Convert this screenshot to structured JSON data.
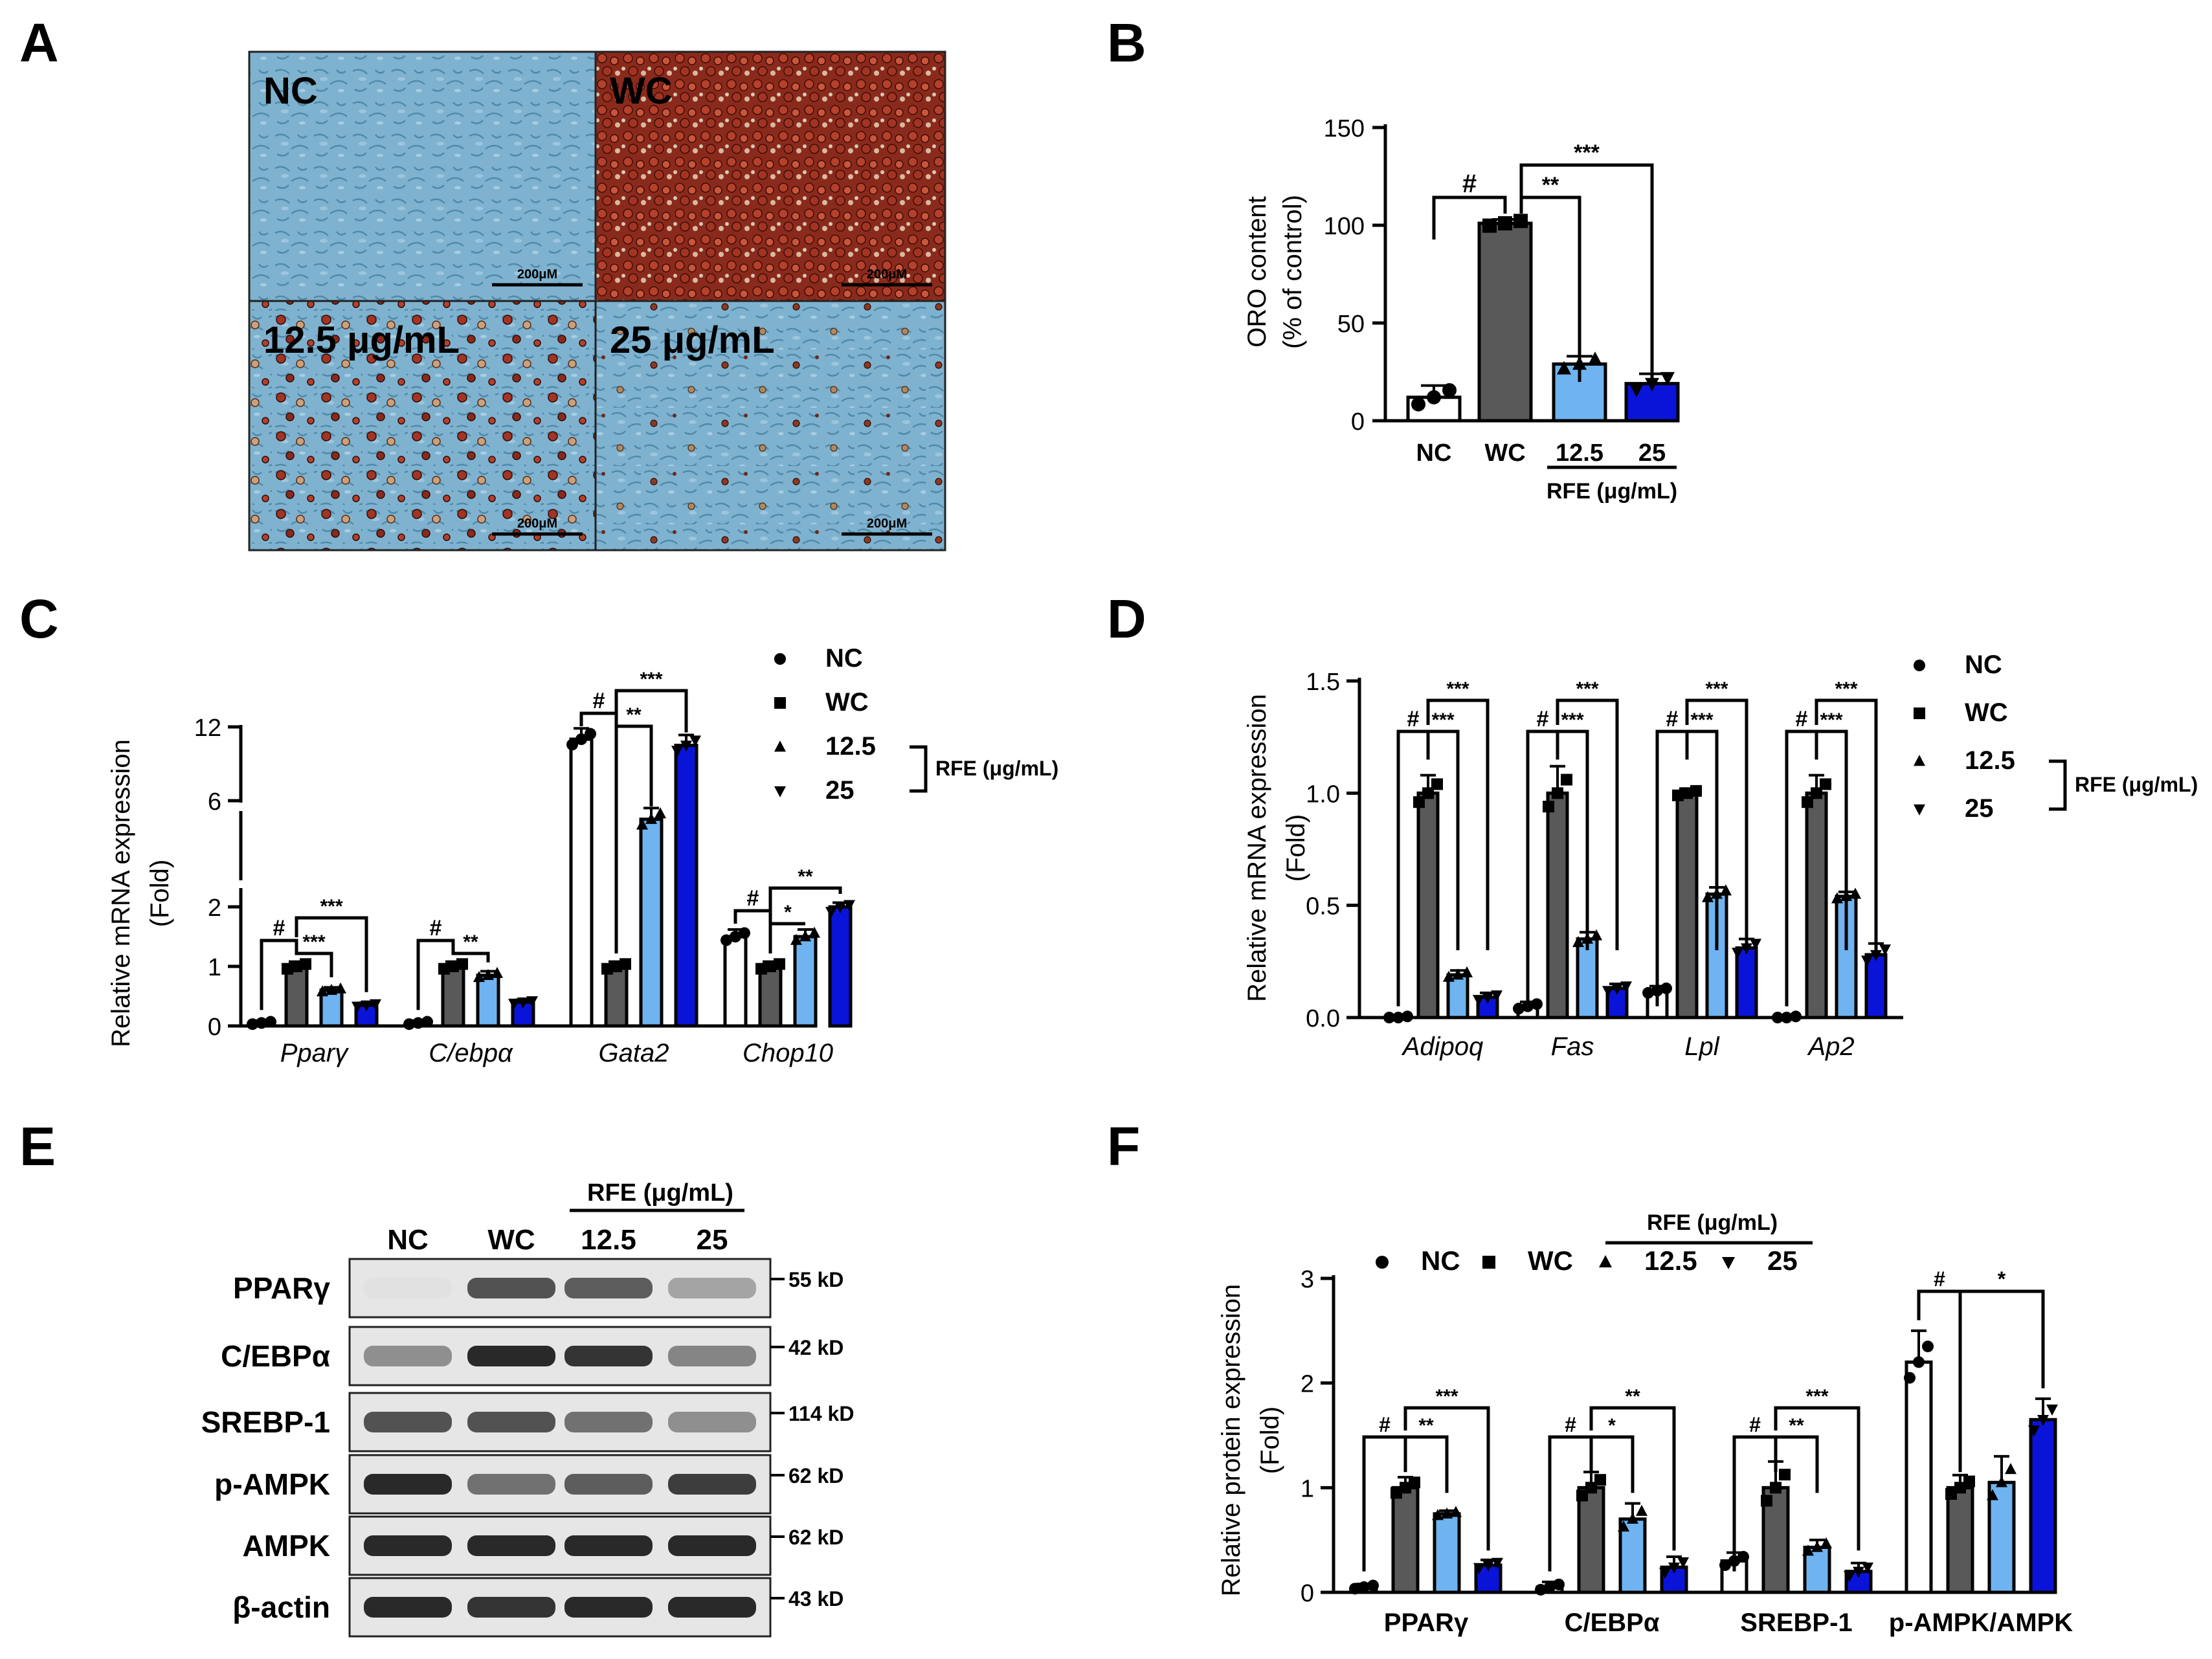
{
  "colors": {
    "NC": "#ffffff",
    "WC": "#595959",
    "r125": "#6fb4f0",
    "r25": "#0a14d8",
    "stroke": "#000000"
  },
  "panel_letters": [
    "A",
    "B",
    "C",
    "D",
    "E",
    "F"
  ],
  "panelA": {
    "labels": [
      "NC",
      "WC",
      "12.5 μg/mL",
      "25 μg/mL"
    ],
    "scalebar": "200μM"
  },
  "legend": {
    "NC": "NC",
    "WC": "WC",
    "r125": "12.5",
    "r25": "25",
    "rfe": "RFE (μg/mL)"
  },
  "chart_data": [
    {
      "panel": "B",
      "type": "bar",
      "ylabel": "ORO content",
      "ylabel2": "(% of control)",
      "categories": [
        "NC",
        "WC",
        "12.5",
        "25"
      ],
      "values": [
        12,
        101,
        29,
        19
      ],
      "errors": [
        6,
        2,
        4,
        5
      ],
      "ylim": [
        0,
        150
      ],
      "yticks": [
        0,
        50,
        100,
        150
      ],
      "group_label": "RFE (μg/mL)",
      "annotations": [
        "#",
        "**",
        "***"
      ]
    },
    {
      "panel": "C",
      "type": "bar",
      "ylabel": "Relative mRNA expression",
      "ylabel2": "(Fold)",
      "y_axis": "segmented (broken axis)",
      "yticks": [
        0,
        1,
        2,
        6,
        12
      ],
      "categories": [
        "Pparγ",
        "C/ebpα",
        "Gata2",
        "Chop10"
      ],
      "series": [
        {
          "name": "NC",
          "values": [
            0.05,
            0.05,
            11,
            1.5
          ]
        },
        {
          "name": "WC",
          "values": [
            1.0,
            1.0,
            1.0,
            1.0
          ]
        },
        {
          "name": "12.5",
          "values": [
            0.6,
            0.85,
            5.3,
            1.5
          ]
        },
        {
          "name": "25",
          "values": [
            0.35,
            0.4,
            10.5,
            2.0
          ]
        }
      ],
      "annotations": [
        [
          "#",
          "***",
          "***"
        ],
        [
          "#",
          "**"
        ],
        [
          "#",
          "**",
          "***"
        ],
        [
          "#",
          "*",
          "**"
        ]
      ]
    },
    {
      "panel": "D",
      "type": "bar",
      "ylabel": "Relative mRNA expression",
      "ylabel2": "(Fold)",
      "ylim": [
        0,
        1.5
      ],
      "yticks": [
        "0.0",
        "0.5",
        "1.0",
        "1.5"
      ],
      "categories": [
        "Adipoq",
        "Fas",
        "Lpl",
        "Ap2"
      ],
      "series": [
        {
          "name": "NC",
          "values": [
            0.0,
            0.05,
            0.12,
            0.0
          ]
        },
        {
          "name": "WC",
          "values": [
            1.0,
            1.0,
            1.0,
            1.0
          ]
        },
        {
          "name": "12.5",
          "values": [
            0.19,
            0.35,
            0.55,
            0.54
          ]
        },
        {
          "name": "25",
          "values": [
            0.09,
            0.13,
            0.31,
            0.28
          ]
        }
      ],
      "errors": [
        [
          0.01,
          0.02,
          0.02,
          0.01
        ],
        [
          0.08,
          0.12,
          0.02,
          0.08
        ],
        [
          0.02,
          0.03,
          0.03,
          0.02
        ],
        [
          0.02,
          0.02,
          0.04,
          0.05
        ]
      ],
      "annotations": [
        [
          "#",
          "***",
          "***"
        ],
        [
          "#",
          "***",
          "***"
        ],
        [
          "#",
          "***",
          "***"
        ],
        [
          "#",
          "***",
          "***"
        ]
      ]
    },
    {
      "panel": "F",
      "type": "bar",
      "ylabel": "Relative protein expression",
      "ylabel2": "(Fold)",
      "ylim": [
        0,
        3
      ],
      "yticks": [
        0,
        1,
        2,
        3
      ],
      "categories": [
        "PPARγ",
        "C/EBPα",
        "SREBP-1",
        "p-AMPK/AMPK"
      ],
      "series": [
        {
          "name": "NC",
          "values": [
            0.05,
            0.05,
            0.3,
            2.2
          ]
        },
        {
          "name": "WC",
          "values": [
            1.0,
            1.0,
            1.0,
            1.0
          ]
        },
        {
          "name": "12.5",
          "values": [
            0.75,
            0.7,
            0.43,
            1.05
          ]
        },
        {
          "name": "25",
          "values": [
            0.26,
            0.24,
            0.2,
            1.65
          ]
        }
      ],
      "errors": [
        [
          0.03,
          0.05,
          0.08,
          0.3
        ],
        [
          0.1,
          0.15,
          0.25,
          0.12
        ],
        [
          0.03,
          0.15,
          0.07,
          0.25
        ],
        [
          0.05,
          0.1,
          0.08,
          0.2
        ]
      ],
      "annotations": [
        [
          "#",
          "**",
          "***"
        ],
        [
          "#",
          "*",
          "**"
        ],
        [
          "#",
          "**",
          "***"
        ],
        [
          "#",
          "*"
        ]
      ]
    }
  ],
  "panelE": {
    "group_label": "RFE (μg/mL)",
    "lanes": [
      "NC",
      "WC",
      "12.5",
      "25"
    ],
    "rows": [
      {
        "name": "PPARγ",
        "size": "55 kD",
        "intensity": [
          0.05,
          0.75,
          0.7,
          0.35
        ]
      },
      {
        "name": "C/EBPα",
        "size": "42 kD",
        "intensity": [
          0.45,
          0.95,
          0.9,
          0.5
        ]
      },
      {
        "name": "SREBP-1",
        "size": "114 kD",
        "intensity": [
          0.75,
          0.75,
          0.6,
          0.45
        ]
      },
      {
        "name": "p-AMPK",
        "size": "62 kD",
        "intensity": [
          0.95,
          0.6,
          0.7,
          0.85
        ]
      },
      {
        "name": "AMPK",
        "size": "62 kD",
        "intensity": [
          0.95,
          0.95,
          0.95,
          0.95
        ]
      },
      {
        "name": "β-actin",
        "size": "43 kD",
        "intensity": [
          0.95,
          0.9,
          0.95,
          0.95
        ]
      }
    ]
  }
}
